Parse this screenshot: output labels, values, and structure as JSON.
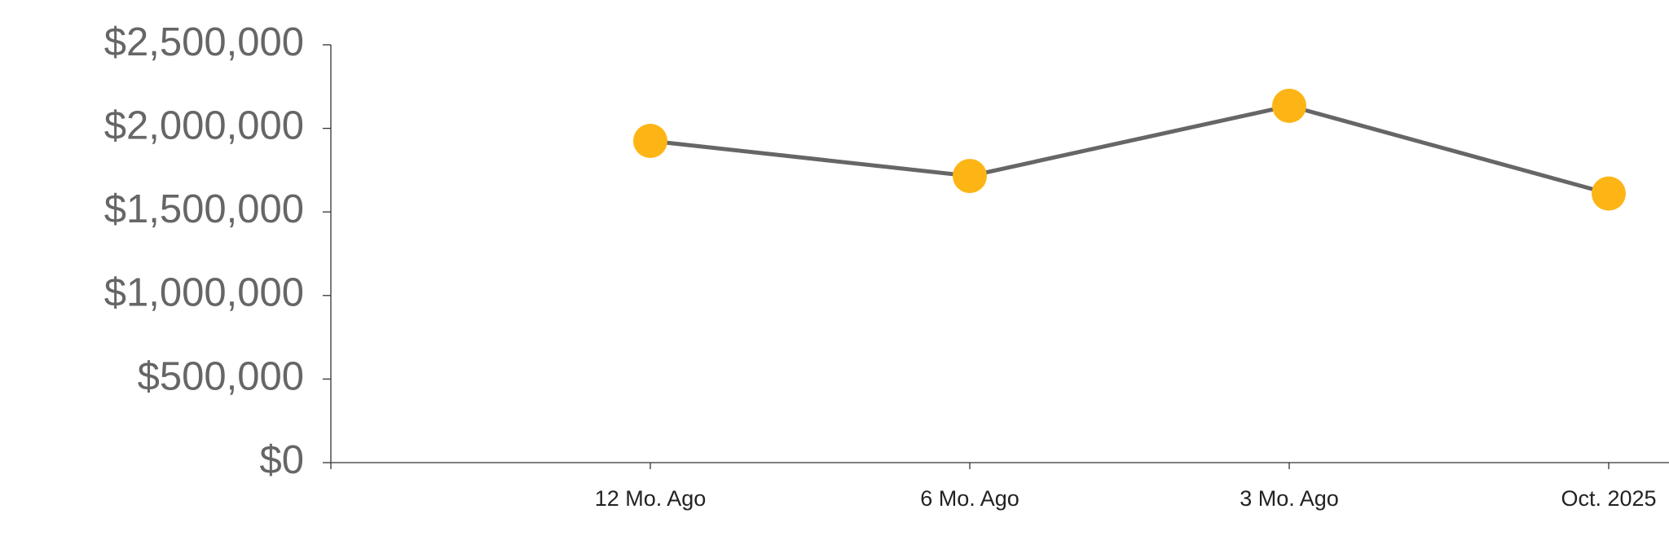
{
  "chart_data": {
    "type": "line",
    "categories": [
      "12 Mo. Ago",
      "6 Mo. Ago",
      "3 Mo. Ago",
      "Oct. 2025"
    ],
    "series": [
      {
        "line_color": "#666666",
        "color": "#fdb515",
        "values": [
          1925000,
          1715000,
          2135000,
          1610000
        ]
      }
    ],
    "ylim": [
      0,
      2500000
    ],
    "yticks": [
      {
        "value": 0,
        "label": "$0"
      },
      {
        "value": 500000,
        "label": "$500,000"
      },
      {
        "value": 1000000,
        "label": "$1,000,000"
      },
      {
        "value": 1500000,
        "label": "$1,500,000"
      },
      {
        "value": 2000000,
        "label": "$2,000,000"
      },
      {
        "value": 2500000,
        "label": "$2,500,000"
      }
    ],
    "grid": false
  }
}
